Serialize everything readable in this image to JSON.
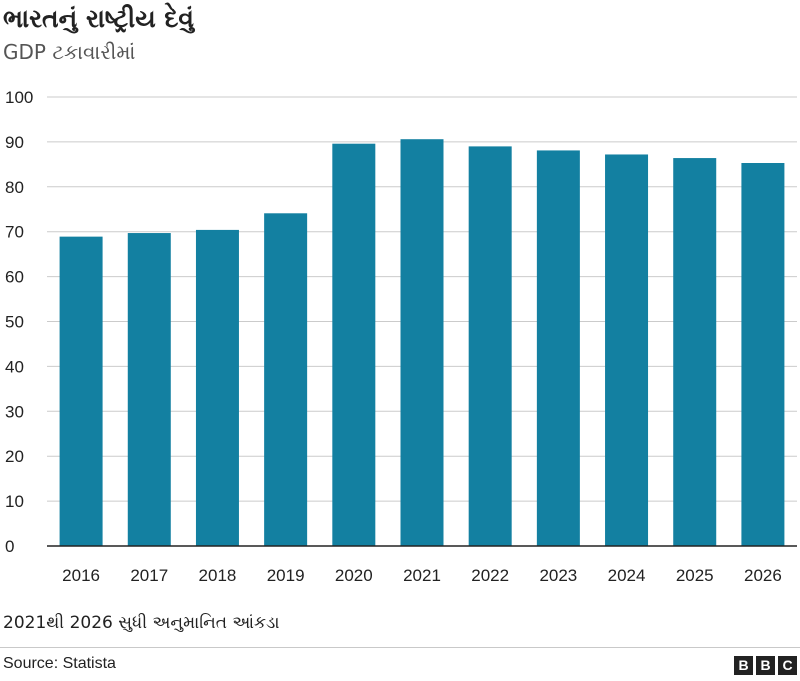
{
  "header": {
    "title": "ભારતનું રાષ્ટ્રીય દેવું",
    "subtitle": "GDP ટકાવારીમાં"
  },
  "chart_data": {
    "type": "bar",
    "title": "ભારતનું રાષ્ટ્રીય દેવું",
    "subtitle": "GDP ટકાવારીમાં",
    "categories": [
      "2016",
      "2017",
      "2018",
      "2019",
      "2020",
      "2021",
      "2022",
      "2023",
      "2024",
      "2025",
      "2026"
    ],
    "values": [
      68.9,
      69.7,
      70.4,
      74.1,
      89.6,
      90.6,
      89.0,
      88.1,
      87.2,
      86.4,
      85.3
    ],
    "ylim": [
      0,
      100
    ],
    "yticks": [
      0,
      10,
      20,
      30,
      40,
      50,
      60,
      70,
      80,
      90,
      100
    ],
    "grid": true,
    "bar_color": "#1380a1",
    "grid_color": "#cbcbcb",
    "axis_color": "#222222"
  },
  "footer": {
    "note": "2021થી 2026 સુધી અનુમાનિત આંકડા",
    "source": "Source: Statista",
    "logo": [
      "B",
      "B",
      "C"
    ]
  }
}
